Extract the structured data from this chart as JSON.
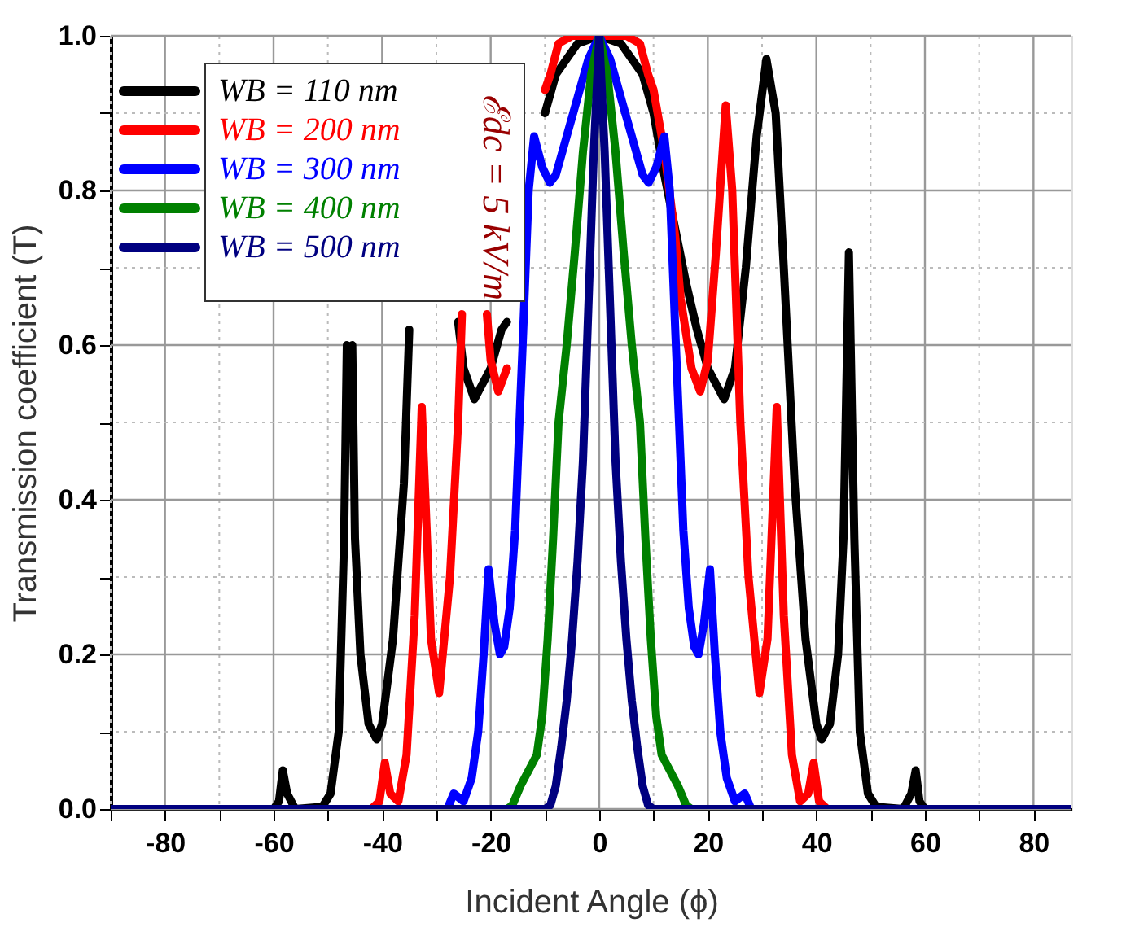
{
  "chart_data": {
    "type": "line",
    "xlabel": "Incident Angle (ϕ)",
    "ylabel": "Transmission coefficient (T)",
    "xlim": [
      -90,
      87
    ],
    "ylim": [
      0,
      1
    ],
    "xticks": [
      {
        "value": -90,
        "label": null
      },
      -80,
      {
        "value": -70,
        "label": null
      },
      -60,
      {
        "value": -50,
        "label": null
      },
      -40,
      {
        "value": -30,
        "label": null
      },
      -20,
      {
        "value": -10,
        "label": null
      },
      0,
      {
        "value": 10,
        "label": null
      },
      20,
      {
        "value": 30,
        "label": null
      },
      40,
      {
        "value": 50,
        "label": null
      },
      60,
      {
        "value": 70,
        "label": null
      },
      80
    ],
    "yticks": [
      {
        "value": 0,
        "label": "0.0"
      },
      {
        "value": 0.1,
        "label": null
      },
      {
        "value": 0.2,
        "label": "0.2"
      },
      {
        "value": 0.3,
        "label": null
      },
      {
        "value": 0.4,
        "label": "0.4"
      },
      {
        "value": 0.5,
        "label": null
      },
      {
        "value": 0.6,
        "label": "0.6"
      },
      {
        "value": 0.7,
        "label": null
      },
      {
        "value": 0.8,
        "label": "0.8"
      },
      {
        "value": 0.9,
        "label": null
      },
      {
        "value": 1,
        "label": "1.0"
      }
    ],
    "grid": true,
    "legend": "top left",
    "marker": "none",
    "line_style": "solid",
    "annotations": [
      "ℰdc = 5 kV/m"
    ],
    "series": [
      {
        "name": "WB = 110 nm",
        "color": "#000000",
        "x": [
          -90,
          -60,
          -59,
          -58.3,
          -57.5,
          -56,
          -51,
          -49.5,
          -48,
          -47,
          -46.5,
          -46,
          -45.5,
          -45,
          -44,
          -42.5,
          -41,
          -40,
          -38,
          -36,
          -35,
          -34,
          -32.5,
          -30.8,
          -29,
          -27,
          -26,
          -25,
          -23,
          -20,
          -18,
          -17,
          -16,
          -14,
          -12,
          -10,
          -8,
          -4,
          0,
          4,
          8,
          10,
          12,
          14,
          16,
          18,
          20,
          23,
          25,
          27,
          29,
          30.8,
          32.5,
          34,
          36,
          38,
          40,
          41,
          42.5,
          44,
          45,
          46,
          47,
          48,
          49.5,
          51,
          56,
          57.5,
          58.3,
          59,
          60,
          87
        ],
        "values": [
          0,
          0,
          0.01,
          0.05,
          0.02,
          0,
          0.003,
          0.02,
          0.1,
          0.35,
          0.6,
          null,
          0.6,
          0.35,
          0.2,
          0.11,
          0.09,
          0.11,
          0.22,
          0.42,
          0.62,
          null,
          null,
          null,
          null,
          null,
          0.63,
          0.57,
          0.53,
          0.57,
          0.62,
          0.63,
          null,
          null,
          null,
          0.9,
          0.95,
          0.99,
          1,
          0.99,
          0.95,
          0.9,
          0.82,
          0.75,
          0.68,
          0.62,
          0.57,
          0.53,
          0.57,
          0.7,
          0.87,
          0.97,
          0.9,
          0.7,
          0.42,
          0.22,
          0.11,
          0.09,
          0.11,
          0.2,
          0.35,
          0.72,
          0.35,
          0.1,
          0.02,
          0.003,
          0,
          0.02,
          0.05,
          0.01,
          0,
          0
        ]
      },
      {
        "name": "WB = 200 nm",
        "color": "#ff0000",
        "x": [
          -90,
          -42,
          -40.5,
          -39.5,
          -38.5,
          -37,
          -35.5,
          -34,
          -32.7,
          -31,
          -29.5,
          -27.5,
          -26,
          -25.3,
          -24.5,
          -23.3,
          -21.5,
          -20.7,
          -20,
          -18.6,
          -17,
          -15,
          -14,
          -12,
          -10,
          -9,
          -7.5,
          -5,
          0,
          5,
          7.5,
          9,
          10,
          12,
          14,
          15,
          17,
          18.6,
          20,
          21.5,
          23.3,
          24.5,
          26,
          27.5,
          29.5,
          31,
          32.7,
          34,
          35.5,
          37,
          38.5,
          39.5,
          40.5,
          42,
          87
        ],
        "values": [
          0,
          0,
          0.01,
          0.06,
          0.02,
          0.01,
          0.07,
          0.25,
          0.52,
          0.22,
          0.15,
          0.3,
          0.5,
          0.64,
          null,
          null,
          null,
          0.64,
          0.58,
          0.54,
          0.57,
          null,
          null,
          null,
          0.93,
          0.95,
          0.99,
          1,
          1,
          1,
          0.99,
          0.95,
          0.93,
          0.85,
          0.74,
          0.66,
          0.57,
          0.54,
          0.58,
          0.72,
          0.91,
          0.8,
          0.5,
          0.3,
          0.15,
          0.22,
          0.52,
          0.25,
          0.07,
          0.01,
          0.02,
          0.06,
          0.01,
          0,
          0
        ]
      },
      {
        "name": "WB = 300 nm",
        "color": "#0000ff",
        "x": [
          -90,
          -28,
          -26.8,
          -25,
          -23.5,
          -22.3,
          -21.3,
          -20.4,
          -19.3,
          -18.3,
          -17.5,
          -16.5,
          -15.5,
          -14.7,
          -14,
          -13,
          -12,
          -10.5,
          -9.1,
          -8,
          -6,
          -4,
          -2,
          0,
          2,
          4,
          6,
          8,
          9.1,
          10.5,
          12,
          13,
          14,
          14.7,
          15.5,
          16.5,
          17.5,
          18.3,
          19.3,
          20.4,
          21.3,
          22.3,
          23.5,
          25,
          26.8,
          28,
          87
        ],
        "values": [
          0,
          0,
          0.02,
          0.01,
          0.04,
          0.1,
          0.2,
          0.31,
          0.24,
          0.2,
          0.21,
          0.26,
          0.36,
          0.5,
          0.62,
          0.8,
          0.87,
          0.83,
          0.81,
          0.82,
          0.87,
          0.92,
          0.97,
          1,
          0.97,
          0.92,
          0.87,
          0.82,
          0.81,
          0.83,
          0.87,
          0.8,
          0.62,
          0.5,
          0.36,
          0.26,
          0.21,
          0.2,
          0.24,
          0.31,
          0.2,
          0.1,
          0.04,
          0.01,
          0.02,
          0,
          0
        ]
      },
      {
        "name": "WB = 400 nm",
        "color": "#008000",
        "x": [
          -90,
          -17,
          -16,
          -14.5,
          -13,
          -11.5,
          -10.5,
          -9.5,
          -8.5,
          -7.5,
          -6,
          -4.5,
          -3,
          -1.5,
          0,
          1.5,
          3,
          4.5,
          6,
          7.5,
          8.5,
          9.5,
          10.5,
          11.5,
          13,
          14.5,
          16,
          17,
          87
        ],
        "values": [
          0,
          0,
          0.005,
          0.03,
          0.05,
          0.07,
          0.12,
          0.22,
          0.35,
          0.5,
          0.6,
          0.72,
          0.85,
          0.95,
          1,
          0.95,
          0.85,
          0.72,
          0.6,
          0.5,
          0.35,
          0.22,
          0.12,
          0.07,
          0.05,
          0.03,
          0.005,
          0,
          0
        ]
      },
      {
        "name": "WB = 500 nm",
        "color": "#000080",
        "x": [
          -90,
          -10,
          -9,
          -8,
          -7,
          -6,
          -5,
          -4,
          -3,
          -2,
          -1,
          0,
          1,
          2,
          3,
          4,
          5,
          6,
          7,
          8,
          9,
          10,
          87
        ],
        "values": [
          0,
          0,
          0.005,
          0.03,
          0.08,
          0.14,
          0.22,
          0.32,
          0.45,
          0.65,
          0.85,
          1,
          0.85,
          0.65,
          0.45,
          0.32,
          0.22,
          0.14,
          0.08,
          0.03,
          0.005,
          0,
          0
        ]
      }
    ]
  }
}
